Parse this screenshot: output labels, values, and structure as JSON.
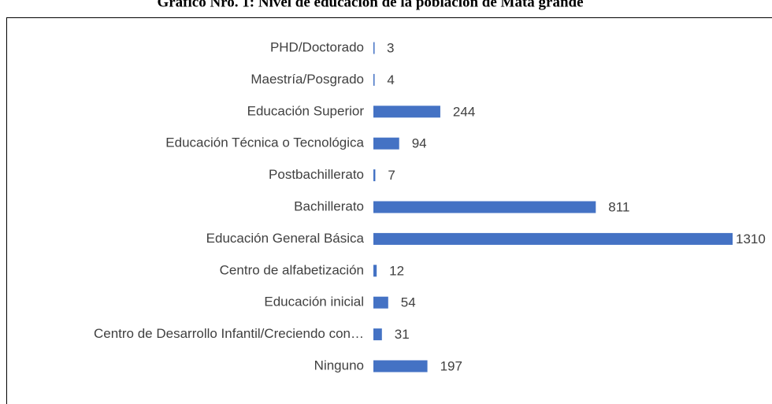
{
  "chart_data": {
    "type": "bar",
    "orientation": "horizontal",
    "title": "Gráfico Nro. 1: Nivel de educación de la población de Mata grande",
    "categories": [
      "PHD/Doctorado",
      "Maestría/Posgrado",
      "Educación Superior",
      "Educación Técnica o Tecnológica",
      "Postbachillerato",
      "Bachillerato",
      "Educación General Básica",
      "Centro de alfabetización",
      "Educación inicial",
      "Centro de Desarrollo Infantil/Creciendo con…",
      "Ninguno"
    ],
    "values": [
      3,
      4,
      244,
      94,
      7,
      811,
      1310,
      12,
      54,
      31,
      197
    ],
    "color": "#4472c4"
  }
}
